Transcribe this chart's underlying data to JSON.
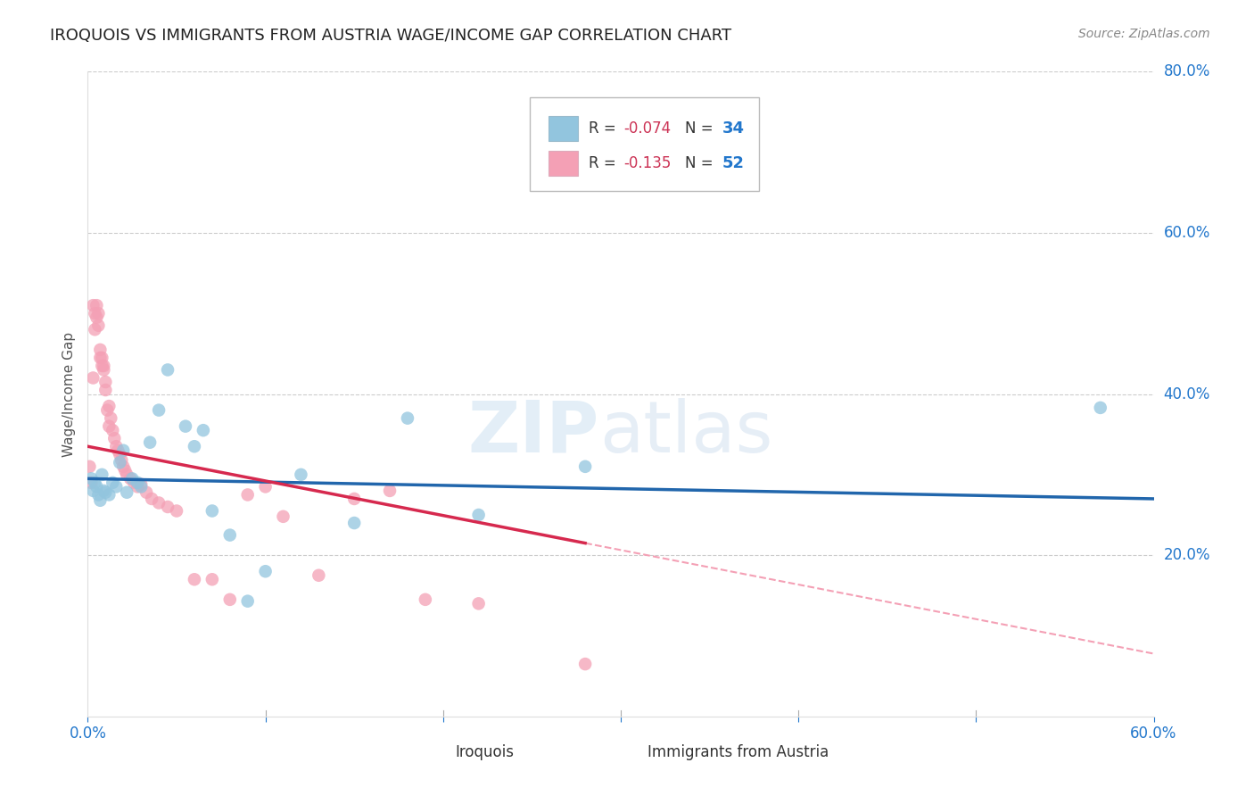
{
  "title": "IROQUOIS VS IMMIGRANTS FROM AUSTRIA WAGE/INCOME GAP CORRELATION CHART",
  "source": "Source: ZipAtlas.com",
  "ylabel": "Wage/Income Gap",
  "xlim": [
    0.0,
    0.6
  ],
  "ylim": [
    0.0,
    0.8
  ],
  "legend_r_blue": "-0.074",
  "legend_n_blue": "34",
  "legend_r_pink": "-0.135",
  "legend_n_pink": "52",
  "blue_color": "#92c5de",
  "pink_color": "#f4a0b5",
  "trendline_blue_color": "#2166ac",
  "trendline_pink_color": "#d6294e",
  "trendline_pink_dash_color": "#f4a0b5",
  "watermark_zip": "ZIP",
  "watermark_atlas": "atlas",
  "blue_scatter_x": [
    0.002,
    0.003,
    0.004,
    0.005,
    0.006,
    0.007,
    0.008,
    0.009,
    0.01,
    0.012,
    0.014,
    0.016,
    0.018,
    0.02,
    0.022,
    0.025,
    0.028,
    0.03,
    0.035,
    0.04,
    0.045,
    0.055,
    0.06,
    0.065,
    0.07,
    0.08,
    0.09,
    0.1,
    0.12,
    0.15,
    0.18,
    0.22,
    0.28,
    0.57
  ],
  "blue_scatter_y": [
    0.295,
    0.28,
    0.29,
    0.285,
    0.275,
    0.268,
    0.3,
    0.28,
    0.278,
    0.275,
    0.29,
    0.285,
    0.315,
    0.33,
    0.278,
    0.295,
    0.29,
    0.285,
    0.34,
    0.38,
    0.43,
    0.36,
    0.335,
    0.355,
    0.255,
    0.225,
    0.143,
    0.18,
    0.3,
    0.24,
    0.37,
    0.25,
    0.31,
    0.383
  ],
  "pink_scatter_x": [
    0.001,
    0.002,
    0.003,
    0.003,
    0.004,
    0.004,
    0.005,
    0.005,
    0.006,
    0.006,
    0.007,
    0.007,
    0.008,
    0.008,
    0.009,
    0.009,
    0.01,
    0.01,
    0.011,
    0.012,
    0.012,
    0.013,
    0.014,
    0.015,
    0.016,
    0.017,
    0.018,
    0.019,
    0.02,
    0.021,
    0.022,
    0.024,
    0.026,
    0.028,
    0.03,
    0.033,
    0.036,
    0.04,
    0.045,
    0.05,
    0.06,
    0.07,
    0.08,
    0.09,
    0.1,
    0.11,
    0.13,
    0.15,
    0.17,
    0.19,
    0.22,
    0.28
  ],
  "pink_scatter_y": [
    0.31,
    0.29,
    0.42,
    0.51,
    0.48,
    0.5,
    0.495,
    0.51,
    0.485,
    0.5,
    0.445,
    0.455,
    0.435,
    0.445,
    0.43,
    0.435,
    0.415,
    0.405,
    0.38,
    0.385,
    0.36,
    0.37,
    0.355,
    0.345,
    0.335,
    0.33,
    0.325,
    0.318,
    0.31,
    0.305,
    0.3,
    0.295,
    0.29,
    0.285,
    0.288,
    0.278,
    0.27,
    0.265,
    0.26,
    0.255,
    0.17,
    0.17,
    0.145,
    0.275,
    0.285,
    0.248,
    0.175,
    0.27,
    0.28,
    0.145,
    0.14,
    0.065
  ]
}
